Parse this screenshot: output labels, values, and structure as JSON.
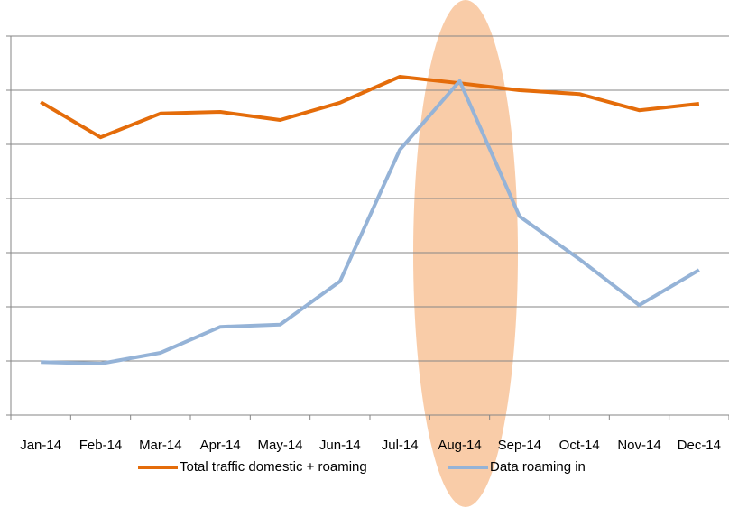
{
  "chart_data": {
    "type": "line",
    "categories": [
      "Jan-14",
      "Feb-14",
      "Mar-14",
      "Apr-14",
      "May-14",
      "Jun-14",
      "Jul-14",
      "Aug-14",
      "Sep-14",
      "Oct-14",
      "Nov-14",
      "Dec-14"
    ],
    "series": [
      {
        "name": "Total traffic domestic + roaming",
        "color": "#e46c0a",
        "values": [
          5.78,
          5.13,
          5.57,
          5.6,
          5.45,
          5.77,
          6.25,
          6.13,
          6.0,
          5.93,
          5.63,
          5.75
        ]
      },
      {
        "name": "Data roaming in",
        "color": "#95b3d7",
        "values": [
          0.98,
          0.95,
          1.15,
          1.63,
          1.67,
          2.47,
          4.9,
          6.17,
          3.67,
          2.88,
          2.03,
          2.68
        ]
      }
    ],
    "ylim": [
      0,
      7
    ],
    "yticks": [
      0,
      1,
      2,
      3,
      4,
      5,
      6,
      7
    ],
    "grid": true,
    "legend": "bottom"
  }
}
